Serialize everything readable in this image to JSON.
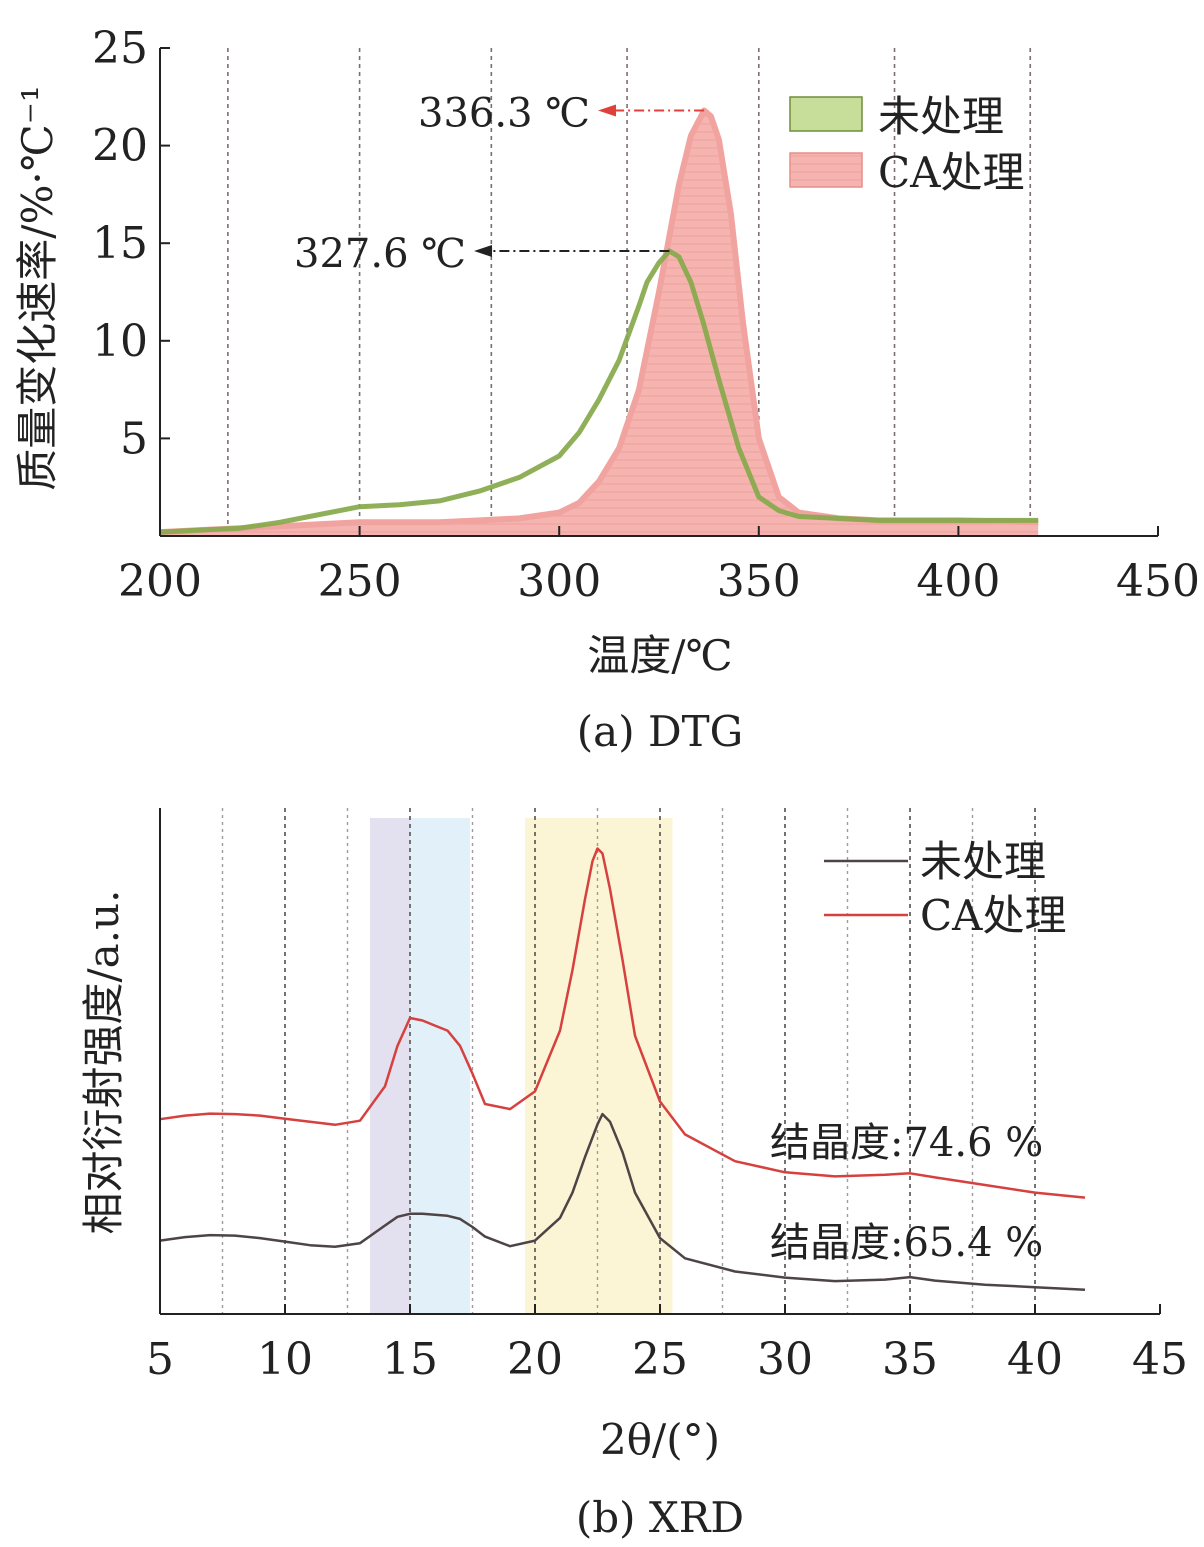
{
  "chart_data": [
    {
      "id": "dtg",
      "type": "area",
      "caption": "(a) DTG",
      "xlabel": "温度/℃",
      "ylabel": "质量变化速率/%·℃⁻¹",
      "xlim": [
        200,
        450
      ],
      "ylim": [
        0,
        25
      ],
      "xticks": [
        200,
        250,
        300,
        350,
        400,
        450
      ],
      "yticks": [
        5,
        10,
        15,
        20,
        25
      ],
      "grid_x": [
        217,
        250,
        283,
        317,
        350,
        384,
        418
      ],
      "legend_position": "top-right",
      "series": [
        {
          "name": "未处理",
          "style": "line",
          "color": "#86a94a",
          "legend_fill": "#c7dd9a",
          "x": [
            200,
            210,
            220,
            230,
            240,
            250,
            260,
            270,
            280,
            290,
            300,
            305,
            310,
            315,
            320,
            322,
            325,
            327.6,
            330,
            333,
            336,
            340,
            345,
            350,
            355,
            360,
            370,
            380,
            400,
            420
          ],
          "y": [
            0.2,
            0.3,
            0.4,
            0.7,
            1.1,
            1.5,
            1.6,
            1.8,
            2.3,
            3.0,
            4.1,
            5.3,
            7.0,
            9.0,
            11.8,
            13.0,
            14.0,
            14.6,
            14.3,
            13.0,
            11.0,
            8.0,
            4.5,
            2.0,
            1.3,
            1.0,
            0.9,
            0.8,
            0.8,
            0.8
          ]
        },
        {
          "name": "CA处理",
          "style": "area",
          "color": "#f1a3a0",
          "fill": "#f6b4b1",
          "x": [
            200,
            210,
            220,
            230,
            240,
            250,
            260,
            270,
            280,
            290,
            300,
            305,
            310,
            315,
            320,
            325,
            330,
            333,
            336.3,
            338,
            340,
            343,
            346,
            350,
            355,
            360,
            370,
            380,
            400,
            420
          ],
          "y": [
            0.2,
            0.3,
            0.4,
            0.5,
            0.6,
            0.7,
            0.7,
            0.7,
            0.8,
            0.9,
            1.2,
            1.7,
            2.8,
            4.5,
            7.5,
            12.5,
            18.0,
            20.5,
            21.8,
            21.5,
            20.3,
            16.5,
            11.0,
            5.0,
            2.0,
            1.2,
            0.9,
            0.8,
            0.8,
            0.7
          ]
        }
      ],
      "annotations": [
        {
          "text": "336.3 ℃",
          "x": 336.3,
          "y": 21.8,
          "color": "#e0403a"
        },
        {
          "text": "327.6 ℃",
          "x": 327.6,
          "y": 14.6,
          "color": "#222222"
        }
      ]
    },
    {
      "id": "xrd",
      "type": "line",
      "caption": "(b) XRD",
      "xlabel": "2θ/(°)",
      "ylabel": "相对衍射强度/a.u.",
      "xlim": [
        5,
        45
      ],
      "ylim": [
        0,
        100
      ],
      "xticks": [
        5,
        10,
        15,
        20,
        25,
        30,
        35,
        40,
        45
      ],
      "grid_x": [
        7.5,
        10,
        12.5,
        15,
        17.5,
        20,
        22.5,
        25,
        27.5,
        30,
        32.5,
        35,
        37.5,
        40
      ],
      "shaded_regions": [
        {
          "x0": 13.4,
          "x1": 15.0,
          "color": "#e3e0ef"
        },
        {
          "x0": 15.0,
          "x1": 17.4,
          "color": "#e1f0f9"
        },
        {
          "x0": 19.6,
          "x1": 25.5,
          "color": "#fbf5d5"
        }
      ],
      "legend_position": "top-right",
      "series": [
        {
          "name": "未处理",
          "color": "#4d4545",
          "x": [
            5,
            6,
            7,
            8,
            9,
            10,
            11,
            12,
            13,
            14,
            14.5,
            15,
            15.5,
            16,
            16.5,
            17,
            17.5,
            18,
            19,
            20,
            21,
            21.5,
            22,
            22.5,
            22.7,
            23,
            23.5,
            24,
            25,
            26,
            28,
            30,
            32,
            34,
            35,
            36,
            38,
            40,
            42
          ],
          "y": [
            14.5,
            15.2,
            15.6,
            15.5,
            15.0,
            14.3,
            13.6,
            13.3,
            14.0,
            17.5,
            19.2,
            19.8,
            19.8,
            19.6,
            19.4,
            18.8,
            17.2,
            15.3,
            13.4,
            14.5,
            19.0,
            24.0,
            31.0,
            37.5,
            39.5,
            38.0,
            32.0,
            24.0,
            15.0,
            11.0,
            8.4,
            7.2,
            6.5,
            6.8,
            7.3,
            6.6,
            5.8,
            5.3,
            4.8
          ]
        },
        {
          "name": "CA处理",
          "color": "#d6413f",
          "x": [
            5,
            6,
            7,
            8,
            9,
            10,
            11,
            12,
            13,
            14,
            14.5,
            15,
            15.5,
            16,
            16.5,
            17,
            17.5,
            18,
            19,
            20,
            21,
            21.5,
            22,
            22.3,
            22.5,
            22.7,
            23,
            23.5,
            24,
            25,
            26,
            28,
            30,
            32,
            34,
            35,
            36,
            38,
            40,
            42
          ],
          "y": [
            38.5,
            39.2,
            39.6,
            39.5,
            39.2,
            38.6,
            38.0,
            37.4,
            38.2,
            45.0,
            53.0,
            58.5,
            58.0,
            57.0,
            56.0,
            53.0,
            47.5,
            41.5,
            40.5,
            44.0,
            56.0,
            68.0,
            82.0,
            89.5,
            92.0,
            91.0,
            84.0,
            70.0,
            55.0,
            42.0,
            35.5,
            30.2,
            28.0,
            27.2,
            27.5,
            27.8,
            27.0,
            25.5,
            24.0,
            23.0
          ]
        }
      ],
      "annotations": [
        {
          "text": "结晶度:74.6 %"
        },
        {
          "text": "结晶度:65.4 %"
        }
      ]
    }
  ]
}
